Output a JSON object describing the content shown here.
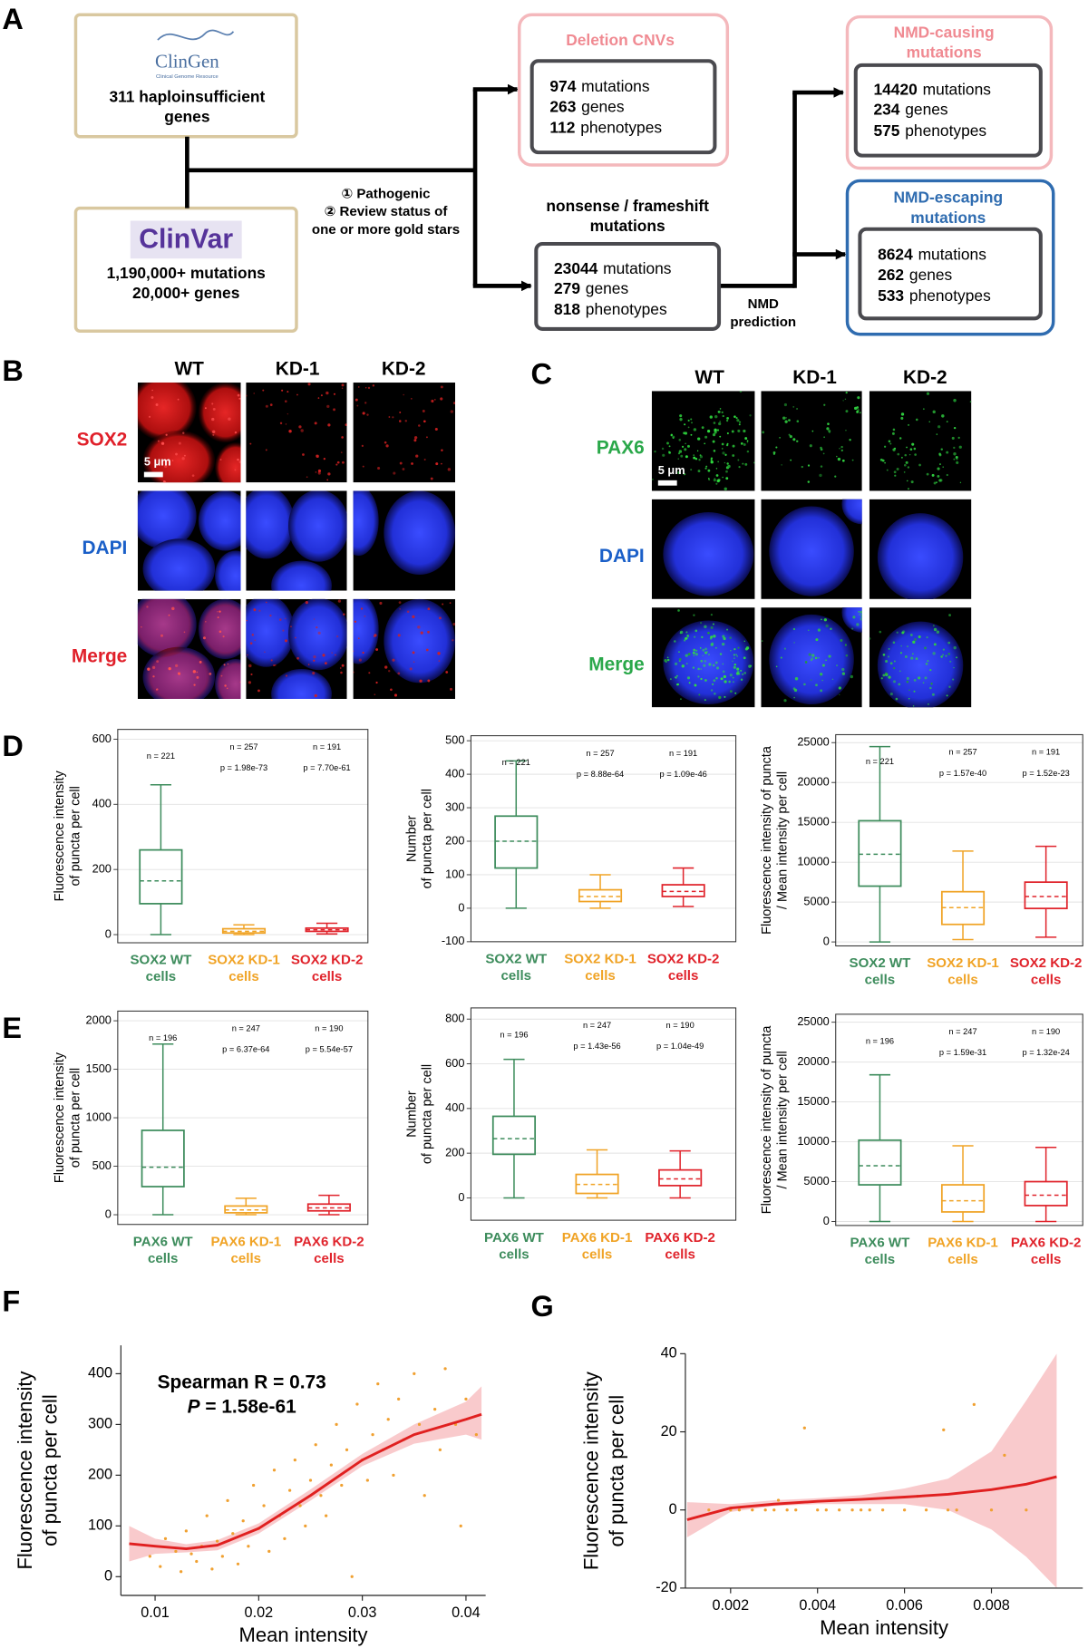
{
  "panel_labels": [
    "A",
    "B",
    "C",
    "D",
    "E",
    "F",
    "G"
  ],
  "diagram": {
    "clingen": {
      "logo": "ClinGen",
      "logo_subtitle": "Clinical Genome Resource",
      "lines": [
        "311 haploinsufficient",
        "genes"
      ]
    },
    "clinvar": {
      "logo": "ClinVar",
      "lines": [
        "1,190,000+ mutations",
        "20,000+ genes"
      ]
    },
    "criteria": [
      "① Pathogenic",
      "② Review status of",
      "one or more gold stars"
    ],
    "deletion_cnvs": {
      "title": [
        "Deletion CNVs"
      ],
      "stats": [
        {
          "count": 974,
          "label": "mutations"
        },
        {
          "count": 263,
          "label": "genes"
        },
        {
          "count": 112,
          "label": "phenotypes"
        }
      ]
    },
    "nonsense": {
      "title": [
        "nonsense / frameshift",
        "mutations"
      ],
      "stats": [
        {
          "count": 23044,
          "label": "mutations"
        },
        {
          "count": 279,
          "label": "genes"
        },
        {
          "count": 818,
          "label": "phenotypes"
        }
      ]
    },
    "nmd_causing": {
      "title": [
        "NMD-causing",
        "mutations"
      ],
      "stats": [
        {
          "count": 14420,
          "label": "mutations"
        },
        {
          "count": 234,
          "label": "genes"
        },
        {
          "count": 575,
          "label": "phenotypes"
        }
      ]
    },
    "nmd_escaping": {
      "title": [
        "NMD-escaping",
        "mutations"
      ],
      "stats": [
        {
          "count": 8624,
          "label": "mutations"
        },
        {
          "count": 262,
          "label": "genes"
        },
        {
          "count": 533,
          "label": "phenotypes"
        }
      ]
    },
    "nmd_prediction": [
      "NMD",
      "prediction"
    ]
  },
  "microscopy": {
    "B": {
      "columns": [
        "WT",
        "KD-1",
        "KD-2"
      ],
      "rows": [
        "SOX2",
        "DAPI",
        "Merge"
      ],
      "scale_bar": "5 μm"
    },
    "C": {
      "columns": [
        "WT",
        "KD-1",
        "KD-2"
      ],
      "rows": [
        "PAX6",
        "DAPI",
        "Merge"
      ],
      "scale_bar": "5 μm"
    }
  },
  "chart_data": [
    {
      "type": "box",
      "ylabel": [
        "Fluorescence intensity",
        "of puncta per cell"
      ],
      "categories": [
        [
          "SOX2 WT",
          "cells"
        ],
        [
          "SOX2 KD-1",
          "cells"
        ],
        [
          "SOX2 KD-2",
          "cells"
        ]
      ],
      "colors": [
        "#3d8c5c",
        "#f0a325",
        "#e0232b"
      ],
      "ylim": [
        -25,
        630
      ],
      "yticks": [
        0,
        200,
        400,
        600
      ],
      "grid": true,
      "boxes": [
        {
          "whislo": 0,
          "q1": 95,
          "mean": 165,
          "q3": 260,
          "whishi": 460
        },
        {
          "whislo": 0,
          "q1": 5,
          "mean": 10,
          "q3": 18,
          "whishi": 30
        },
        {
          "whislo": 2,
          "q1": 10,
          "mean": 15,
          "q3": 20,
          "whishi": 35
        }
      ],
      "annotations": [
        [
          "n = 221"
        ],
        [
          "n = 257",
          "p = 1.98e-73"
        ],
        [
          "n = 191",
          "p = 7.70e-61"
        ]
      ]
    },
    {
      "type": "box",
      "ylabel": [
        "Number",
        "of puncta per cell"
      ],
      "categories": [
        [
          "SOX2 WT",
          "cells"
        ],
        [
          "SOX2 KD-1",
          "cells"
        ],
        [
          "SOX2 KD-2",
          "cells"
        ]
      ],
      "colors": [
        "#3d8c5c",
        "#f0a325",
        "#e0232b"
      ],
      "ylim": [
        -100,
        515
      ],
      "yticks": [
        -100,
        0,
        100,
        200,
        300,
        400,
        500
      ],
      "grid": true,
      "boxes": [
        {
          "whislo": 0,
          "q1": 120,
          "mean": 200,
          "q3": 275,
          "whishi": 440
        },
        {
          "whislo": 0,
          "q1": 20,
          "mean": 35,
          "q3": 55,
          "whishi": 100
        },
        {
          "whislo": 5,
          "q1": 35,
          "mean": 50,
          "q3": 70,
          "whishi": 120
        }
      ],
      "annotations": [
        [
          "n = 221"
        ],
        [
          "n = 257",
          "p = 8.88e-64"
        ],
        [
          "n = 191",
          "p = 1.09e-46"
        ]
      ]
    },
    {
      "type": "box",
      "ylabel": [
        "Fluorescence intensity of puncta",
        "/ Mean intensity per cell"
      ],
      "categories": [
        [
          "SOX2 WT",
          "cells"
        ],
        [
          "SOX2 KD-1",
          "cells"
        ],
        [
          "SOX2 KD-2",
          "cells"
        ]
      ],
      "colors": [
        "#3d8c5c",
        "#f0a325",
        "#e0232b"
      ],
      "ylim": [
        -500,
        26000
      ],
      "yticks": [
        0,
        5000,
        10000,
        15000,
        20000,
        25000
      ],
      "grid": true,
      "boxes": [
        {
          "whislo": 0,
          "q1": 7000,
          "mean": 11000,
          "q3": 15200,
          "whishi": 24500
        },
        {
          "whislo": 300,
          "q1": 2200,
          "mean": 4300,
          "q3": 6300,
          "whishi": 11400
        },
        {
          "whislo": 600,
          "q1": 4200,
          "mean": 5700,
          "q3": 7500,
          "whishi": 12000
        }
      ],
      "annotations": [
        [
          "n = 221"
        ],
        [
          "n = 257",
          "p = 1.57e-40"
        ],
        [
          "n = 191",
          "p = 1.52e-23"
        ]
      ]
    },
    {
      "type": "box",
      "ylabel": [
        "Fluorescence intensity",
        "of puncta per cell"
      ],
      "categories": [
        [
          "PAX6 WT",
          "cells"
        ],
        [
          "PAX6 KD-1",
          "cells"
        ],
        [
          "PAX6 KD-2",
          "cells"
        ]
      ],
      "colors": [
        "#3d8c5c",
        "#f0a325",
        "#e0232b"
      ],
      "ylim": [
        -100,
        2100
      ],
      "yticks": [
        0,
        500,
        1000,
        1500,
        2000
      ],
      "grid": true,
      "boxes": [
        {
          "whislo": 0,
          "q1": 290,
          "mean": 490,
          "q3": 870,
          "whishi": 1760
        },
        {
          "whislo": 0,
          "q1": 20,
          "mean": 50,
          "q3": 90,
          "whishi": 170
        },
        {
          "whislo": 0,
          "q1": 40,
          "mean": 70,
          "q3": 110,
          "whishi": 200
        }
      ],
      "annotations": [
        [
          "n = 196"
        ],
        [
          "n = 247",
          "p = 6.37e-64"
        ],
        [
          "n = 190",
          "p = 5.54e-57"
        ]
      ]
    },
    {
      "type": "box",
      "ylabel": [
        "Number",
        "of puncta per cell"
      ],
      "categories": [
        [
          "PAX6 WT",
          "cells"
        ],
        [
          "PAX6 KD-1",
          "cells"
        ],
        [
          "PAX6 KD-2",
          "cells"
        ]
      ],
      "colors": [
        "#3d8c5c",
        "#f0a325",
        "#e0232b"
      ],
      "ylim": [
        -100,
        850
      ],
      "yticks": [
        0,
        200,
        400,
        600,
        800
      ],
      "grid": true,
      "boxes": [
        {
          "whislo": 0,
          "q1": 195,
          "mean": 265,
          "q3": 365,
          "whishi": 620
        },
        {
          "whislo": 0,
          "q1": 20,
          "mean": 60,
          "q3": 105,
          "whishi": 215
        },
        {
          "whislo": 0,
          "q1": 55,
          "mean": 85,
          "q3": 125,
          "whishi": 210
        }
      ],
      "annotations": [
        [
          "n = 196"
        ],
        [
          "n = 247",
          "p = 1.43e-56"
        ],
        [
          "n = 190",
          "p = 1.04e-49"
        ]
      ]
    },
    {
      "type": "box",
      "ylabel": [
        "Fluorescence intensity of puncta",
        "/ Mean intensity per cell"
      ],
      "categories": [
        [
          "PAX6 WT",
          "cells"
        ],
        [
          "PAX6 KD-1",
          "cells"
        ],
        [
          "PAX6 KD-2",
          "cells"
        ]
      ],
      "colors": [
        "#3d8c5c",
        "#f0a325",
        "#e0232b"
      ],
      "ylim": [
        -500,
        26000
      ],
      "yticks": [
        0,
        5000,
        10000,
        15000,
        20000,
        25000
      ],
      "grid": true,
      "boxes": [
        {
          "whislo": 0,
          "q1": 4600,
          "mean": 7000,
          "q3": 10200,
          "whishi": 18400
        },
        {
          "whislo": 0,
          "q1": 1200,
          "mean": 2600,
          "q3": 4600,
          "whishi": 9500
        },
        {
          "whislo": 0,
          "q1": 2000,
          "mean": 3300,
          "q3": 5000,
          "whishi": 9300
        }
      ],
      "annotations": [
        [
          "n = 196"
        ],
        [
          "n = 247",
          "p = 1.59e-31"
        ],
        [
          "n = 190",
          "p = 1.32e-24"
        ]
      ]
    },
    {
      "type": "scatter",
      "xlabel": "Mean intensity",
      "ylabel": [
        "Fluorescence intensity",
        "of puncta per cell"
      ],
      "xlim": [
        0.0067,
        0.0419
      ],
      "ylim": [
        -37,
        456
      ],
      "xticks": [
        0.01,
        0.02,
        0.03,
        0.04
      ],
      "yticks": [
        0,
        100,
        200,
        300,
        400
      ],
      "color": "#f0a030",
      "x": [
        0.0095,
        0.0105,
        0.011,
        0.012,
        0.0125,
        0.013,
        0.0135,
        0.014,
        0.0145,
        0.015,
        0.0155,
        0.016,
        0.0165,
        0.017,
        0.0175,
        0.018,
        0.0185,
        0.019,
        0.0195,
        0.02,
        0.0205,
        0.021,
        0.0215,
        0.022,
        0.0225,
        0.023,
        0.0235,
        0.024,
        0.0245,
        0.025,
        0.0255,
        0.026,
        0.0265,
        0.027,
        0.0275,
        0.028,
        0.0285,
        0.029,
        0.0295,
        0.03,
        0.0305,
        0.031,
        0.0315,
        0.032,
        0.0325,
        0.033,
        0.0335,
        0.034,
        0.035,
        0.0355,
        0.036,
        0.037,
        0.0375,
        0.038,
        0.039,
        0.0395,
        0.04,
        0.041
      ],
      "values": [
        40,
        20,
        75,
        50,
        10,
        90,
        45,
        30,
        60,
        120,
        15,
        70,
        40,
        150,
        85,
        25,
        110,
        60,
        180,
        95,
        140,
        50,
        210,
        120,
        75,
        170,
        230,
        140,
        100,
        190,
        260,
        160,
        120,
        220,
        300,
        180,
        250,
        0,
        340,
        230,
        190,
        280,
        380,
        250,
        310,
        200,
        350,
        270,
        400,
        300,
        160,
        330,
        250,
        410,
        300,
        100,
        350,
        280
      ],
      "fit": {
        "color": "#e02020",
        "band_color": "#f7b3b6",
        "x": [
          0.0075,
          0.01,
          0.013,
          0.016,
          0.02,
          0.025,
          0.03,
          0.035,
          0.04,
          0.0415
        ],
        "values": [
          65,
          60,
          55,
          62,
          95,
          160,
          230,
          280,
          310,
          320
        ],
        "lower": [
          30,
          45,
          48,
          52,
          85,
          150,
          218,
          262,
          280,
          270
        ],
        "upper": [
          100,
          75,
          64,
          72,
          105,
          172,
          242,
          300,
          345,
          375
        ]
      },
      "stat_label": "Spearman R = 0.73",
      "p_symbol": "P",
      "p_value": "= 1.58e-61"
    },
    {
      "type": "scatter",
      "xlabel": "Mean intensity",
      "ylabel": [
        "Fluorescence intensity",
        "of puncta per cell"
      ],
      "xlim": [
        0.00096,
        0.0101
      ],
      "ylim": [
        -20,
        40
      ],
      "xticks": [
        0.002,
        0.004,
        0.006,
        0.008
      ],
      "yticks": [
        -20,
        0,
        20,
        40
      ],
      "color": "#f0a030",
      "x": [
        0.0015,
        0.002,
        0.0022,
        0.0025,
        0.0028,
        0.003,
        0.0031,
        0.0033,
        0.0035,
        0.0037,
        0.004,
        0.0042,
        0.0045,
        0.0048,
        0.005,
        0.0052,
        0.0055,
        0.006,
        0.0063,
        0.0065,
        0.0069,
        0.007,
        0.0072,
        0.0076,
        0.008,
        0.0083,
        0.0088
      ],
      "values": [
        0,
        0,
        0,
        0,
        0,
        0,
        2.5,
        0,
        0,
        21,
        0,
        0,
        0,
        0,
        0,
        0,
        0,
        0,
        3.5,
        0,
        20.5,
        0,
        0,
        27,
        0,
        14,
        0
      ],
      "fit": {
        "color": "#e02020",
        "band_color": "#f7b3b6",
        "x": [
          0.001,
          0.002,
          0.003,
          0.004,
          0.005,
          0.006,
          0.007,
          0.008,
          0.0088,
          0.0095
        ],
        "values": [
          -2.5,
          0.5,
          1.5,
          2.2,
          2.7,
          3.3,
          4,
          5.2,
          6.6,
          8.5
        ],
        "lower": [
          -7,
          -0.5,
          1,
          1.5,
          1.5,
          1.5,
          0,
          -5,
          -12,
          -20
        ],
        "upper": [
          2,
          1.5,
          2.5,
          3,
          3.8,
          5.5,
          8,
          15,
          28,
          40
        ]
      }
    }
  ]
}
